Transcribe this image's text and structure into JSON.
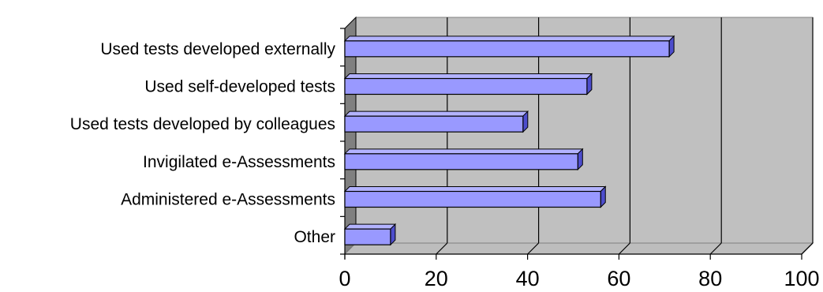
{
  "chart_data": {
    "type": "bar",
    "orientation": "horizontal",
    "three_d": true,
    "categories": [
      "Used tests developed externally",
      "Used self-developed tests",
      "Used tests developed by colleagues",
      "Invigilated e-Assessments",
      "Administered e-Assessments",
      "Other"
    ],
    "values": [
      71,
      53,
      39,
      51,
      56,
      10
    ],
    "xlim": [
      0,
      100
    ],
    "xticks": [
      "0",
      "20",
      "40",
      "60",
      "80",
      "100"
    ],
    "grid": true,
    "legend": "none",
    "title": "",
    "xlabel": "",
    "ylabel": "",
    "colors": {
      "bar_front": "#9999ff",
      "bar_top": "#b3b3ff",
      "bar_side": "#4d4dcc",
      "plot_wall": "#c0c0c0",
      "side_wall": "#808080",
      "floor": "#bdbdbd",
      "gridline": "#000000"
    }
  }
}
